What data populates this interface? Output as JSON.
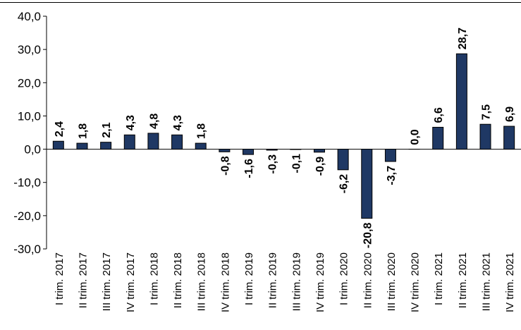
{
  "chart_data": {
    "type": "bar",
    "title": "",
    "xlabel": "",
    "ylabel": "",
    "ylim": [
      -30,
      40
    ],
    "yticks": [
      "40,0",
      "30,0",
      "20,0",
      "10,0",
      "0,0",
      "-10,0",
      "-20,0",
      "-30,0"
    ],
    "ytick_values": [
      40,
      30,
      20,
      10,
      0,
      -10,
      -20,
      -30
    ],
    "grid": false,
    "legend": "none",
    "bar_color": "#1f3864",
    "categories": [
      "I trim. 2017",
      "II trim. 2017",
      "III trim. 2017",
      "IV trim. 2017",
      "I trim. 2018",
      "II trim. 2018",
      "III trim. 2018",
      "IV trim. 2018",
      "I trim. 2019",
      "II trim. 2019",
      "III trim. 2019",
      "IV trim. 2019",
      "I trim. 2020",
      "II trim. 2020",
      "III trim. 2020",
      "IV trim. 2020",
      "I trim. 2021",
      "II trim. 2021",
      "III trim. 2021",
      "IV trim. 2021"
    ],
    "values": [
      2.4,
      1.8,
      2.1,
      4.3,
      4.8,
      4.3,
      1.8,
      -0.8,
      -1.6,
      -0.3,
      -0.1,
      -0.9,
      -6.2,
      -20.8,
      -3.7,
      0.0,
      6.6,
      28.7,
      7.5,
      6.9
    ],
    "data_labels": [
      "2,4",
      "1,8",
      "2,1",
      "4,3",
      "4,8",
      "4,3",
      "1,8",
      "-0,8",
      "-1,6",
      "-0,3",
      "-0,1",
      "-0,9",
      "-6,2",
      "-20,8",
      "-3,7",
      "0,0",
      "6,6",
      "28,7",
      "7,5",
      "6,9"
    ]
  }
}
